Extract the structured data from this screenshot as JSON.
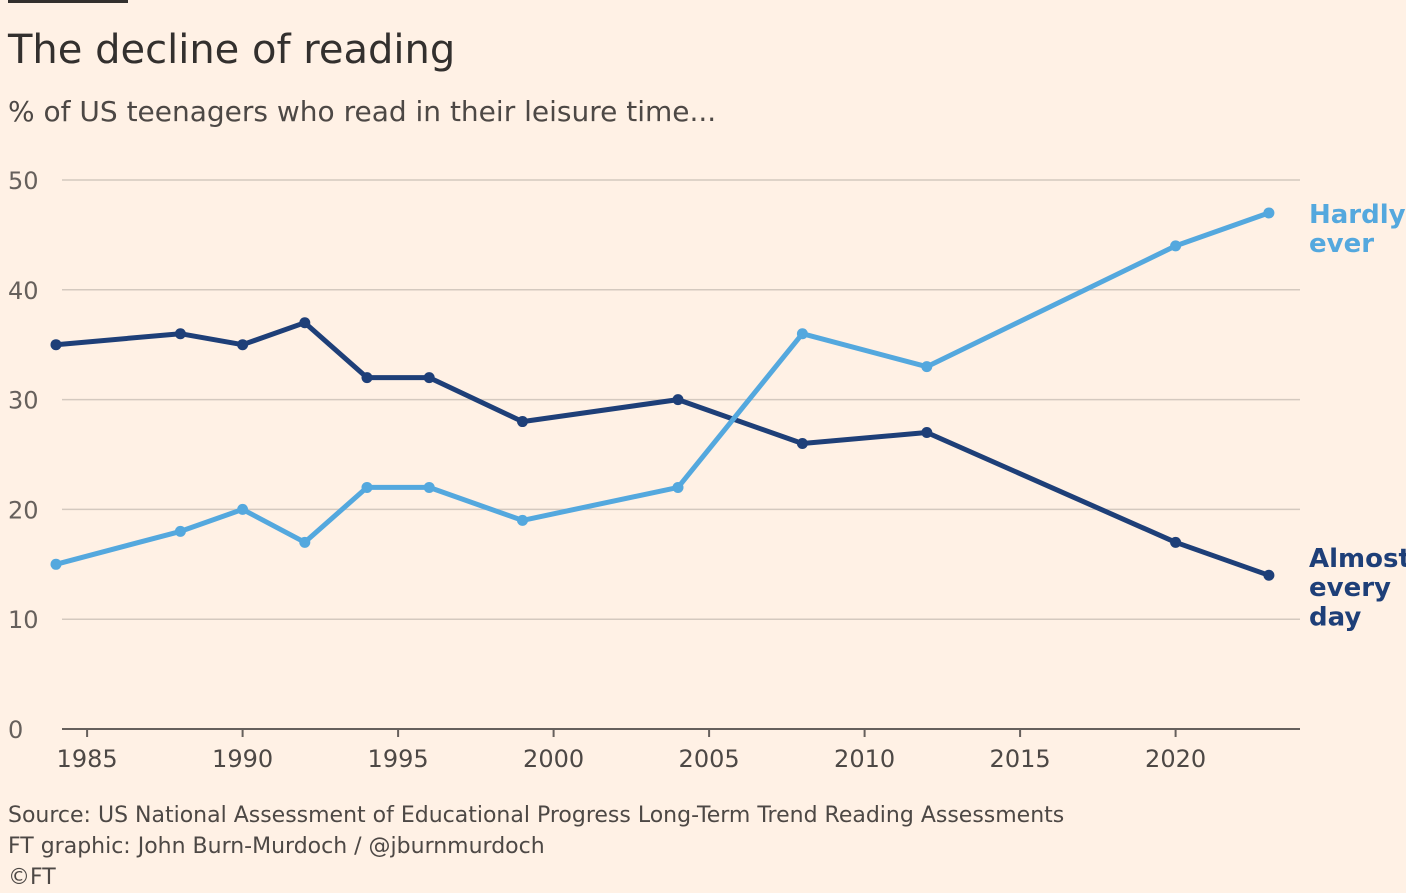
{
  "chart_data": {
    "type": "line",
    "title": "The decline of reading",
    "subtitle": "% of US teenagers who read in their leisure time...",
    "xlabel": "",
    "ylabel": "",
    "xlim": [
      1984,
      2024
    ],
    "ylim": [
      0,
      50
    ],
    "x_ticks": [
      1985,
      1990,
      1995,
      2000,
      2005,
      2010,
      2015,
      2020
    ],
    "y_ticks": [
      0,
      10,
      20,
      30,
      40,
      50
    ],
    "grid": true,
    "series": [
      {
        "name": "Almost every day",
        "label_lines": [
          "Almost",
          "every",
          "day"
        ],
        "color": "#1e3f78",
        "x": [
          1984,
          1988,
          1990,
          1992,
          1994,
          1996,
          1999,
          2004,
          2008,
          2012,
          2020,
          2023
        ],
        "values": [
          35,
          36,
          35,
          37,
          32,
          32,
          28,
          30,
          26,
          27,
          17,
          14
        ]
      },
      {
        "name": "Hardly ever",
        "label_lines": [
          "Hardly",
          "ever"
        ],
        "color": "#54a8de",
        "x": [
          1984,
          1988,
          1990,
          1992,
          1994,
          1996,
          1999,
          2004,
          2008,
          2012,
          2020,
          2023
        ],
        "values": [
          15,
          18,
          20,
          17,
          22,
          22,
          19,
          22,
          36,
          33,
          44,
          47
        ]
      }
    ]
  },
  "footer": {
    "source": "Source: US National Assessment of Educational Progress Long-Term Trend Reading Assessments",
    "credit": "FT graphic: John Burn-Murdoch / @jburnmurdoch",
    "copyright": "©FT"
  }
}
